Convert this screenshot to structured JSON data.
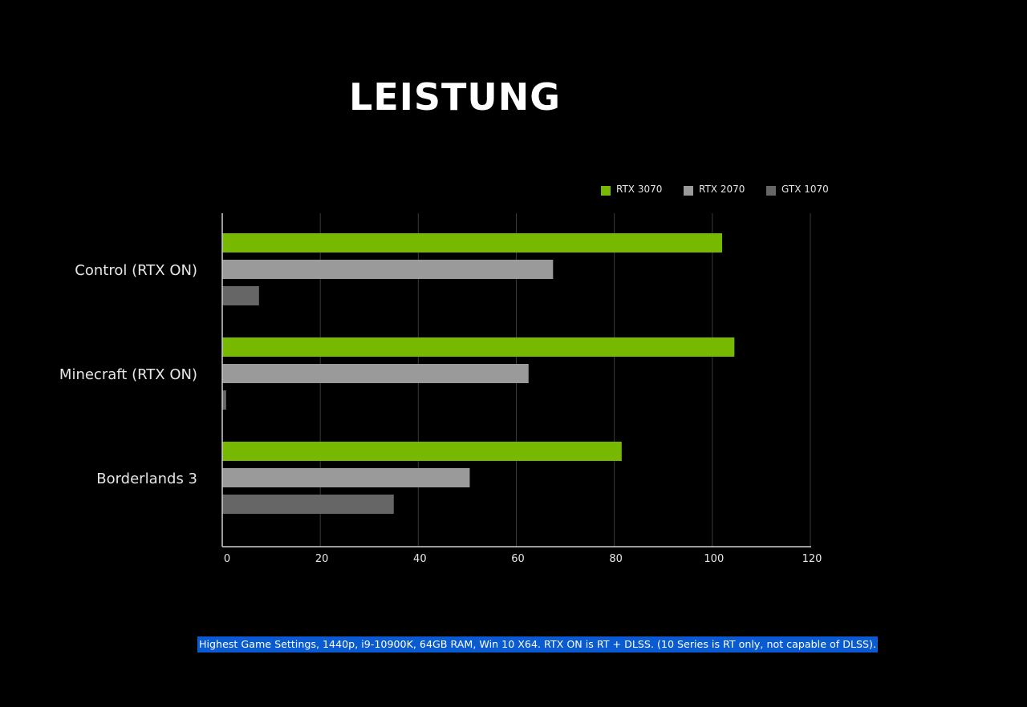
{
  "chart_data": {
    "type": "bar",
    "orientation": "horizontal",
    "title": "LEISTUNG",
    "categories": [
      "Control (RTX ON)",
      "Minecraft (RTX ON)",
      "Borderlands 3"
    ],
    "series": [
      {
        "name": "RTX 3070",
        "color": "#76b900",
        "values": [
          102,
          104.5,
          81.5
        ]
      },
      {
        "name": "RTX 2070",
        "color": "#9a9a9a",
        "values": [
          67.5,
          62.5,
          50.5
        ]
      },
      {
        "name": "GTX 1070",
        "color": "#666666",
        "values": [
          7.5,
          0.8,
          35
        ]
      }
    ],
    "x_ticks": [
      0,
      20,
      40,
      60,
      80,
      100,
      120
    ],
    "xlim": [
      0,
      120
    ],
    "grid": true,
    "legend_position": "top-right",
    "footnote": "Highest Game Settings, 1440p, i9-10900K, 64GB RAM, Win 10 X64. RTX ON is RT + DLSS. (10 Series is RT only, not capable of DLSS).",
    "footnote_highlight_color": "#0a5bd2"
  }
}
